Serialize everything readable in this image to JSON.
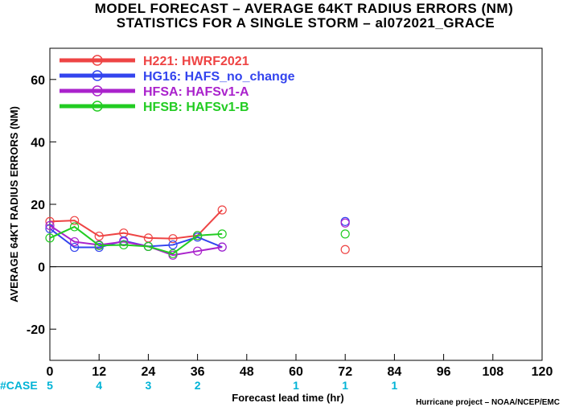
{
  "chart_data": {
    "type": "line",
    "title": "MODEL FORECAST – AVERAGE 64KT RADIUS ERRORS (NM)",
    "subtitle": "STATISTICS FOR A SINGLE STORM – al072021_GRACE",
    "xlabel": "Forecast lead time (hr)",
    "ylabel": "AVERAGE 64KT RADIUS ERRORS (NM)",
    "credit": "Hurricane project – NOAA/NCEP/EMC",
    "xlim": [
      0,
      120
    ],
    "ylim": [
      -30,
      70
    ],
    "x_ticks": [
      0,
      12,
      24,
      36,
      48,
      60,
      72,
      84,
      96,
      108,
      120
    ],
    "y_ticks": [
      -20,
      0,
      20,
      40,
      60
    ],
    "grid": false,
    "legend_position": "top-left",
    "x": [
      0,
      6,
      12,
      18,
      24,
      30,
      36,
      42,
      72
    ],
    "series": [
      {
        "name": "H221: HWRF2021",
        "color": "#ee4444",
        "values": [
          14.5,
          14.8,
          9.8,
          10.8,
          9.2,
          9.0,
          10.0,
          18.2,
          5.5
        ]
      },
      {
        "name": "HG16: HAFS_no_change",
        "color": "#3344ee",
        "values": [
          12.2,
          6.2,
          6.2,
          8.3,
          6.5,
          7.0,
          9.5,
          6.3,
          14.5
        ]
      },
      {
        "name": "HFSA: HAFSv1-A",
        "color": "#aa22cc",
        "values": [
          13.2,
          8.0,
          7.0,
          8.0,
          6.5,
          3.7,
          5.0,
          6.3,
          14.0
        ]
      },
      {
        "name": "HFSB: HAFSv1-B",
        "color": "#22cc22",
        "values": [
          9.2,
          12.8,
          6.8,
          7.0,
          6.5,
          4.2,
          10.0,
          10.5,
          10.5
        ]
      }
    ],
    "case_label": "#CASE",
    "case_x": [
      0,
      12,
      24,
      36,
      60,
      72,
      84
    ],
    "case_counts": [
      "5",
      "4",
      "3",
      "2",
      "1",
      "1",
      "1"
    ]
  },
  "colors": {
    "case_label": "#00b3d6",
    "zero_line": "#000000"
  }
}
